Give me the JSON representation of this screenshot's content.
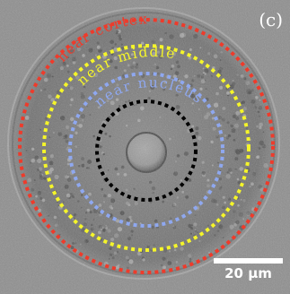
{
  "panel_label": "(c)",
  "scale_bar": {
    "label": "20 μm"
  },
  "regions": [
    {
      "name": "near cortex",
      "color": "#ee3b2b"
    },
    {
      "name": "near middle",
      "color": "#f5f52a"
    },
    {
      "name": "near nucleus",
      "color": "#8fa8f0"
    },
    {
      "name": "",
      "color": "#000000"
    }
  ],
  "colors": {
    "background": "#8e8e8e",
    "cell_body": "#7b7b7b",
    "nucleus": "#9c9c9c",
    "scale_bar": "#ffffff"
  }
}
